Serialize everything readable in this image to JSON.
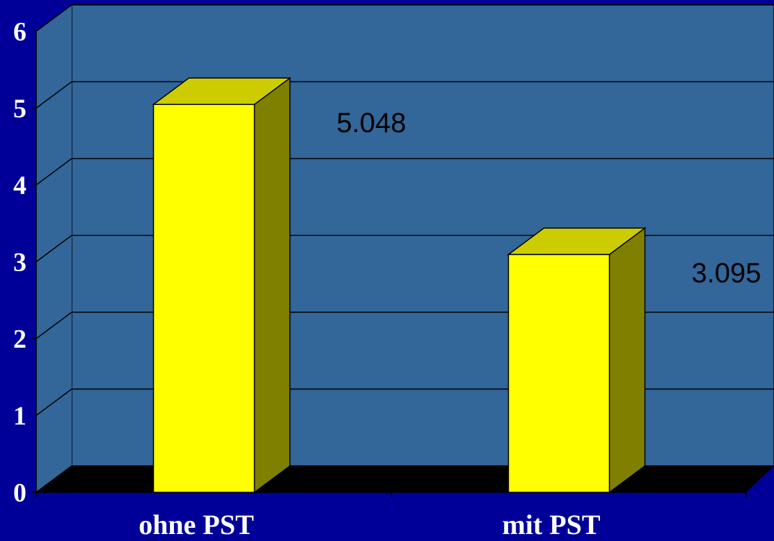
{
  "chart_data": {
    "type": "bar",
    "style": "3d-column",
    "categories": [
      "ohne PST",
      "mit PST"
    ],
    "values": [
      5.048,
      3.095
    ],
    "data_labels": [
      "5.048",
      "3.095"
    ],
    "title": "",
    "xlabel": "",
    "ylabel": "",
    "ylim": [
      0,
      6
    ],
    "y_ticks": [
      "0",
      "1",
      "2",
      "3",
      "4",
      "5",
      "6"
    ],
    "grid": true,
    "legend": "none"
  },
  "colors": {
    "background": "#000099",
    "plot_wall": "#336699",
    "floor": "#000000",
    "bar_front": "#ffff00",
    "bar_top": "#cccc00",
    "bar_side": "#808000",
    "gridline": "#000000",
    "axis_text": "#ffffff",
    "data_label_text": "#000000"
  }
}
